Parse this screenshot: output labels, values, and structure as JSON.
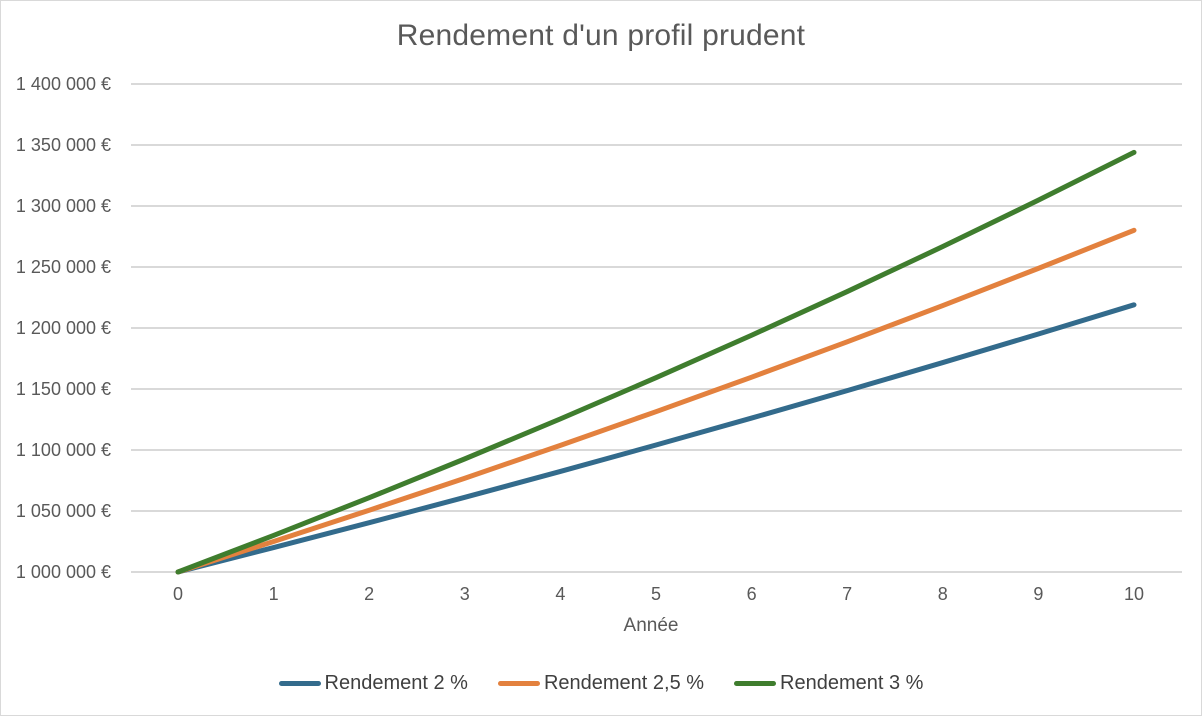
{
  "chart_data": {
    "type": "line",
    "title": "Rendement d'un profil prudent",
    "xlabel": "Année",
    "ylabel": "",
    "x": [
      0,
      1,
      2,
      3,
      4,
      5,
      6,
      7,
      8,
      9,
      10
    ],
    "x_tick_labels": [
      "0",
      "1",
      "2",
      "3",
      "4",
      "5",
      "6",
      "7",
      "8",
      "9",
      "10"
    ],
    "ylim": [
      1000000,
      1400000
    ],
    "ytick_step": 50000,
    "y_tick_labels": [
      "1 000 000 €",
      "1 050 000 €",
      "1 100 000 €",
      "1 150 000 €",
      "1 200 000 €",
      "1 250 000 €",
      "1 300 000 €",
      "1 350 000 €",
      "1 400 000 €"
    ],
    "grid": "horizontal-only",
    "legend_position": "bottom",
    "series": [
      {
        "name": "Rendement 2 %",
        "color": "#336B8C",
        "values": [
          1000000,
          1020000,
          1040400,
          1061208,
          1082432,
          1104081,
          1126162,
          1148686,
          1171659,
          1195093,
          1218994
        ]
      },
      {
        "name": "Rendement 2,5 %",
        "color": "#E3813E",
        "values": [
          1000000,
          1025000,
          1050625,
          1076891,
          1103813,
          1131408,
          1159693,
          1188686,
          1218403,
          1248863,
          1280085
        ]
      },
      {
        "name": "Rendement 3 %",
        "color": "#3F7D2E",
        "values": [
          1000000,
          1030000,
          1060900,
          1092727,
          1125509,
          1159274,
          1194052,
          1229874,
          1266770,
          1304773,
          1343916
        ]
      }
    ]
  },
  "colors": {
    "background": "#FFFFFF",
    "frame_border": "#D9D9D9",
    "gridline": "#D9D9D9",
    "title_text": "#595959",
    "axis_text": "#595959",
    "legend_text": "#3F3F3F"
  }
}
